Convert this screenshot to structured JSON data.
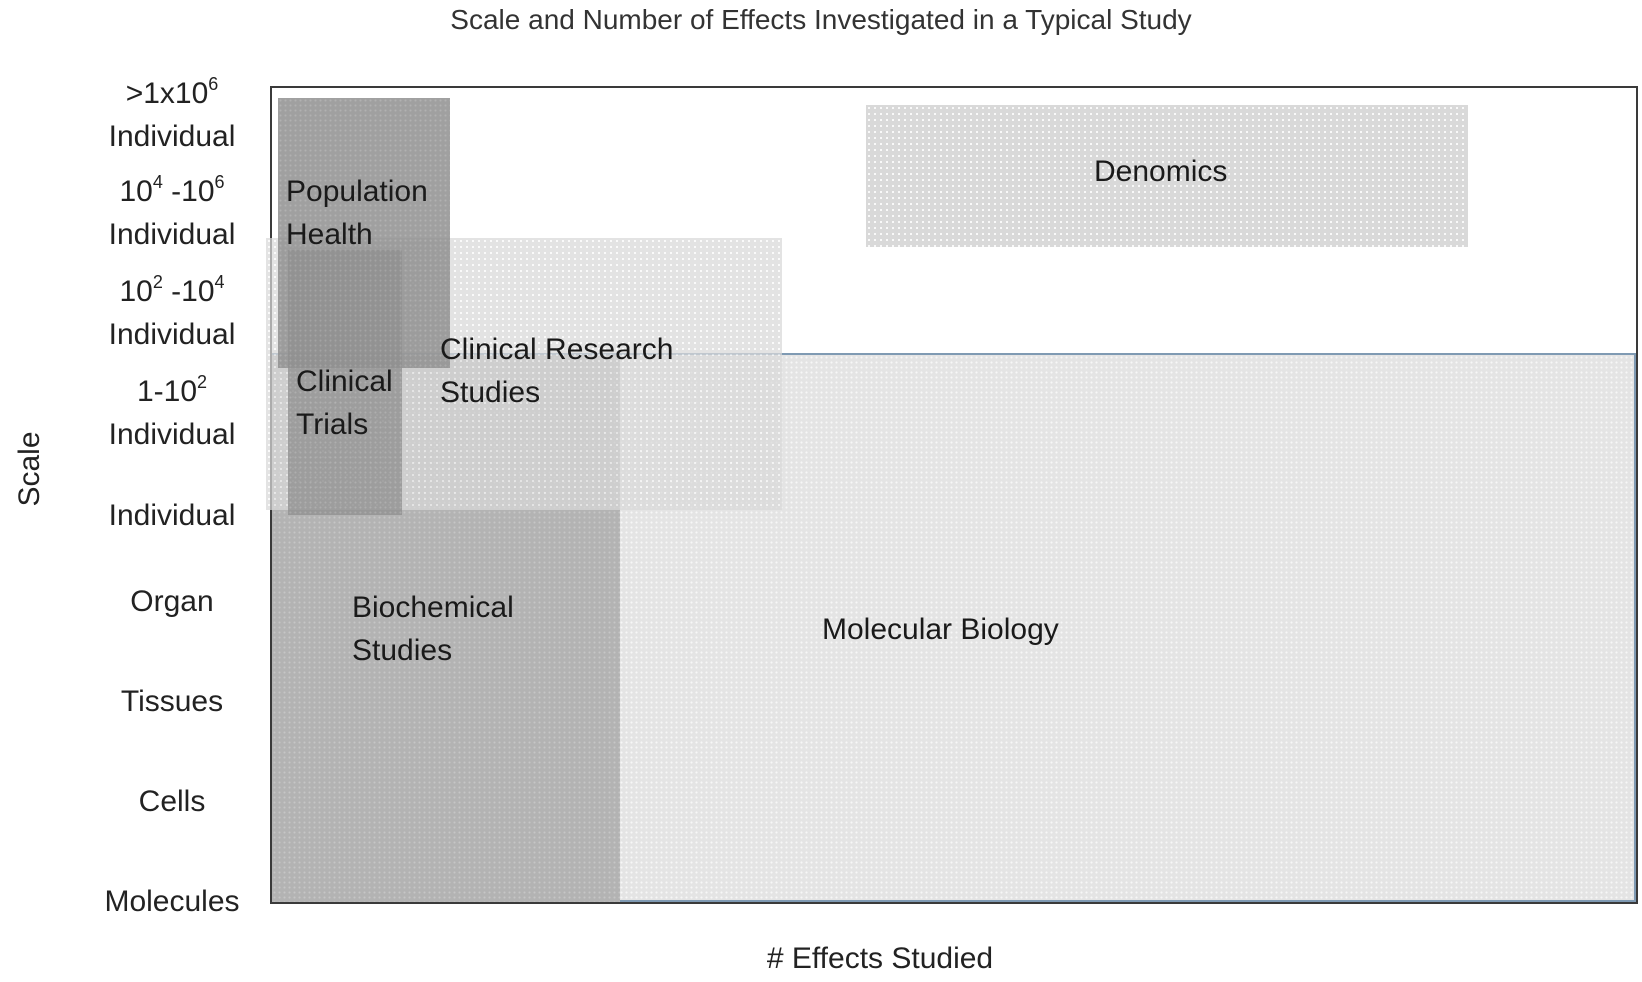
{
  "title": "Scale and Number of Effects Investigated in a Typical Study",
  "x_axis_label": "# Effects Studied",
  "y_axis_label": "Scale",
  "y_ticks": [
    {
      "base": ">1x10",
      "exp": "6",
      "suffix": "",
      "second_line": "Individual"
    },
    {
      "base": "10",
      "exp": "4",
      "suffix": " -10",
      "suffix_exp": "6",
      "second_line": "Individual"
    },
    {
      "base": "10",
      "exp": "2",
      "suffix": " -10",
      "suffix_exp": "4",
      "second_line": "Individual"
    },
    {
      "base": "1-10",
      "exp": "2",
      "suffix": "",
      "second_line": "Individual"
    },
    {
      "label": "Individual"
    },
    {
      "label": "Organ"
    },
    {
      "label": "Tissues"
    },
    {
      "label": "Cells"
    },
    {
      "label": "Molecules"
    }
  ],
  "regions": {
    "molecular_biology": {
      "label": "Molecular Biology",
      "color": "#e4e4e4"
    },
    "biochemical_studies": {
      "line1": "Biochemical",
      "line2": "Studies",
      "color": "#b3b3b3"
    },
    "clinical_research": {
      "line1": "Clinical Research",
      "line2": "Studies",
      "color": "#d9d9d9"
    },
    "clinical_trials": {
      "line1": "Clinical",
      "line2": "Trials",
      "color": "#a0a0a0"
    },
    "population_health": {
      "line1": "Population",
      "line2": "Health",
      "color": "#909090"
    },
    "denomics": {
      "label": "Denomics",
      "color": "#d6d6d6"
    }
  },
  "colors": {
    "frame_border": "#3a3a3a",
    "molecular_border": "#7f9ab3"
  }
}
